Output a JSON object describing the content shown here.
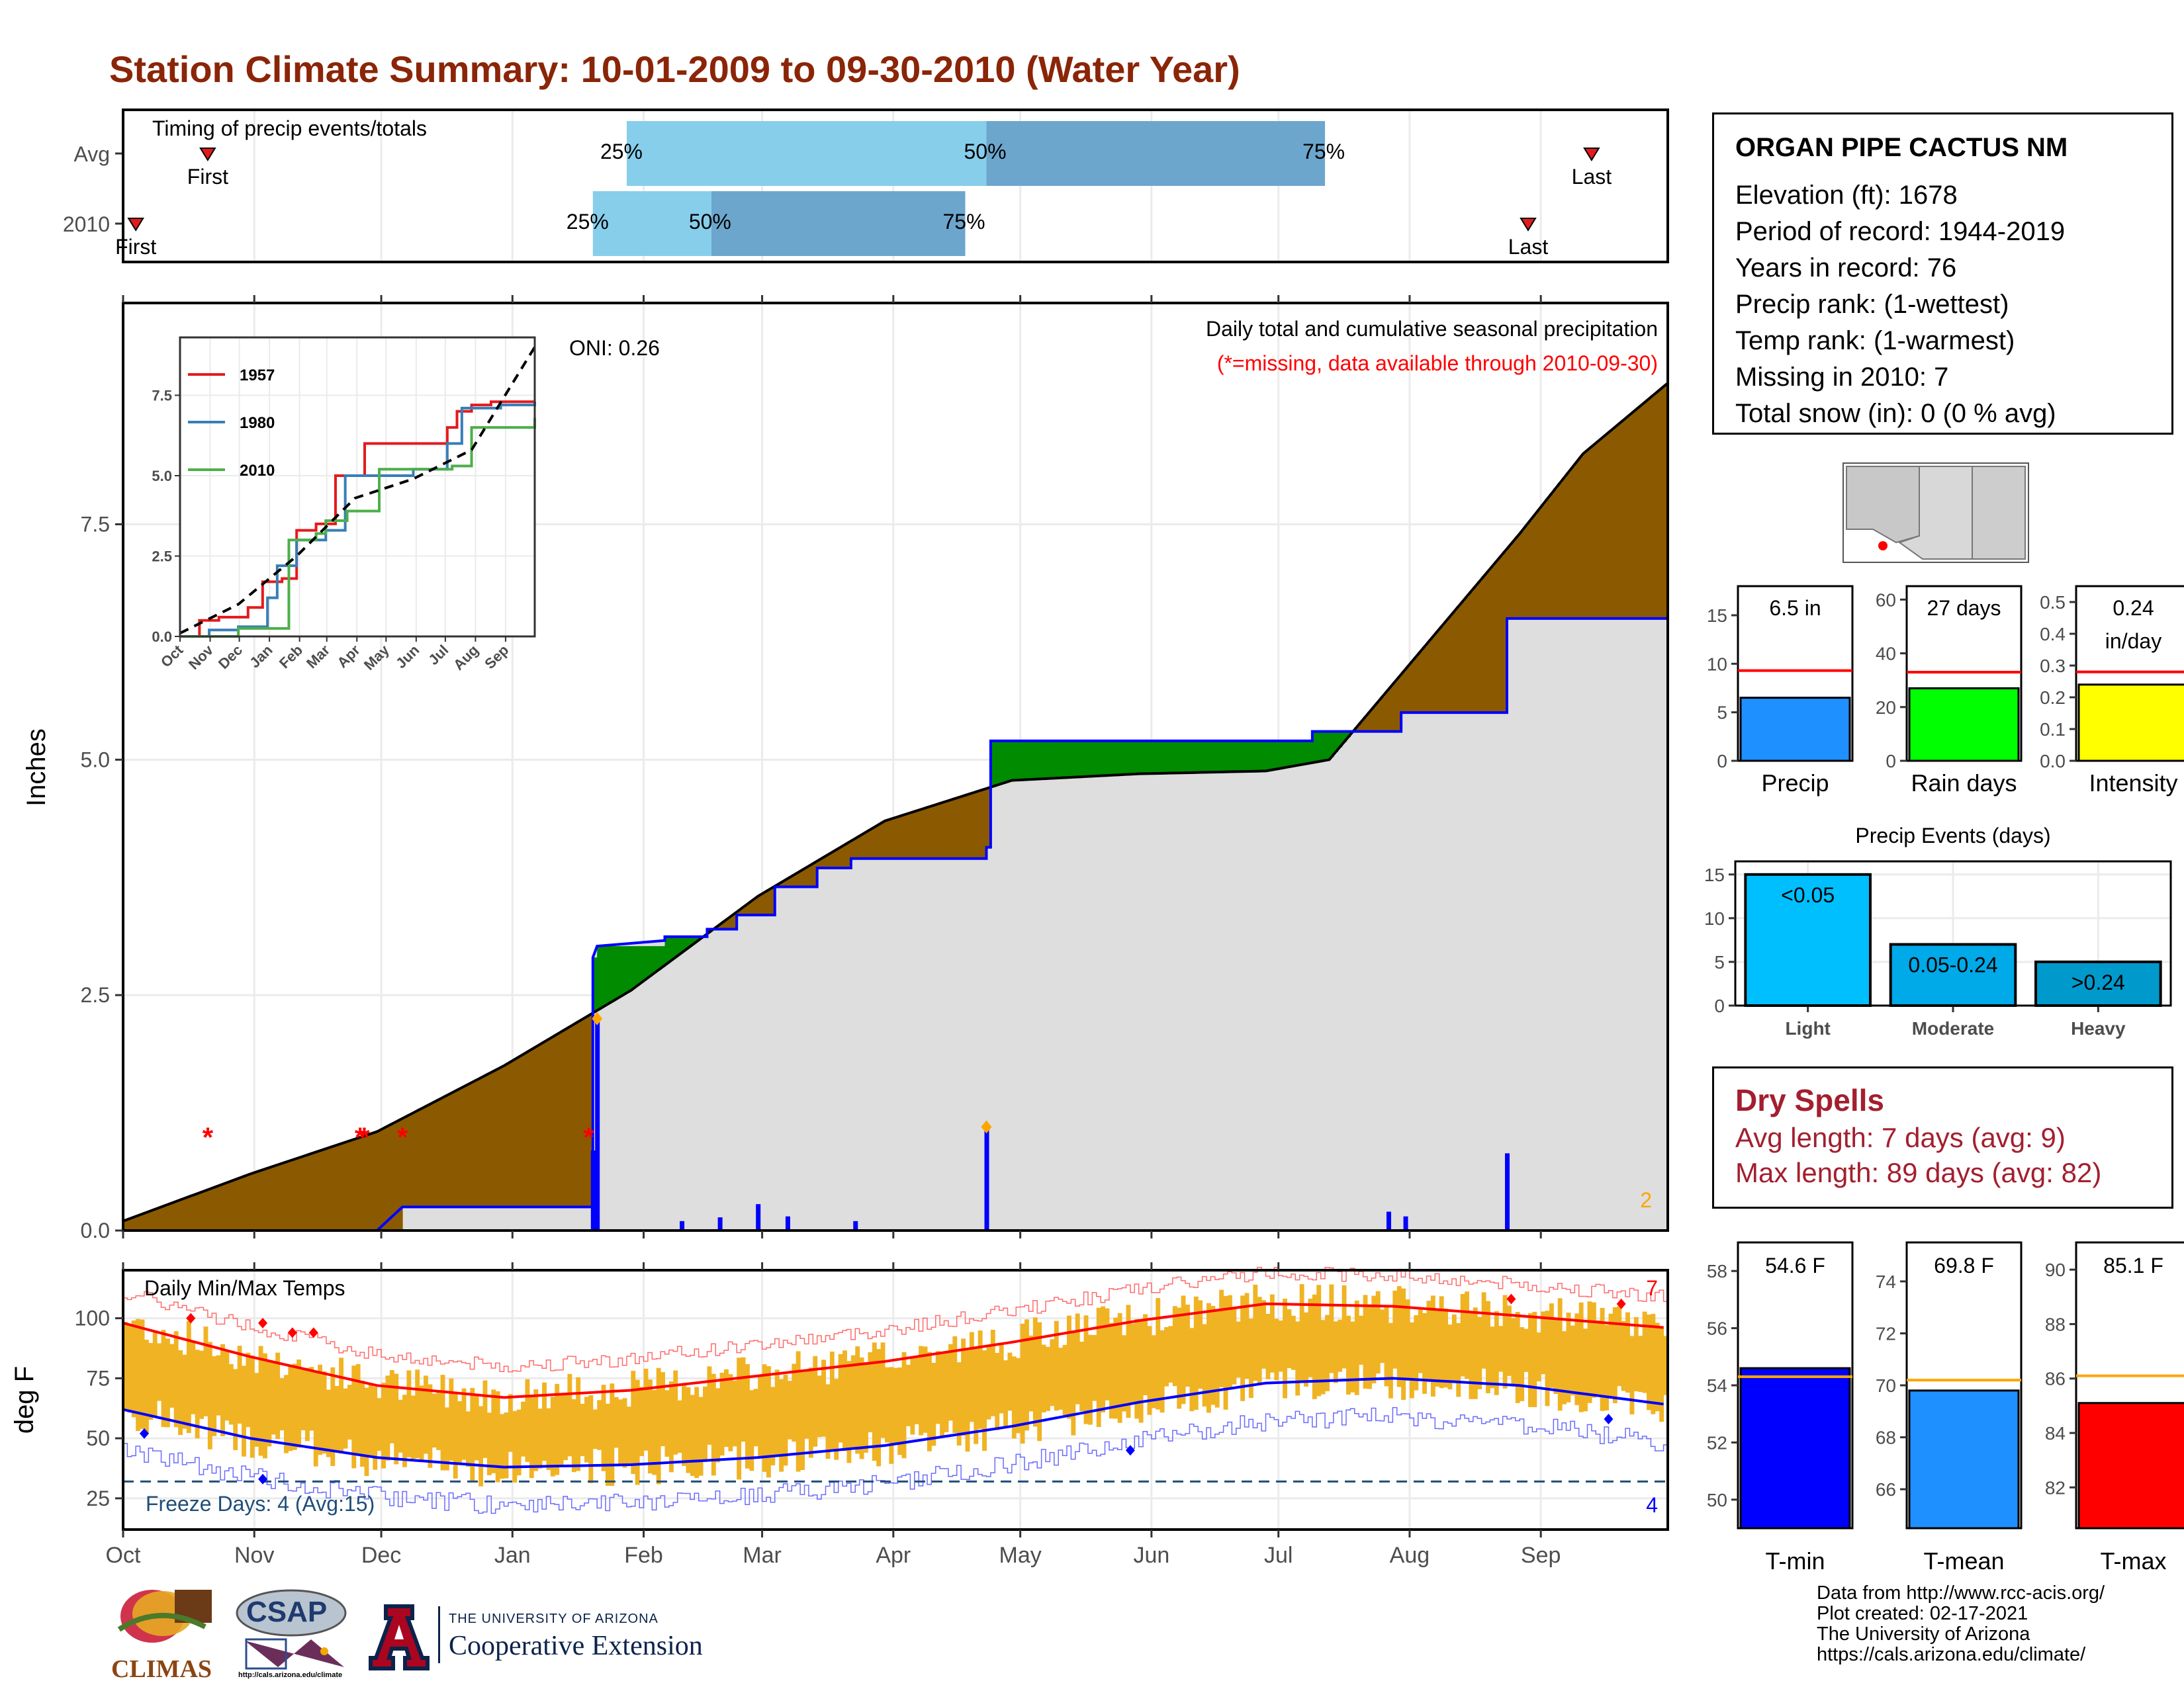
{
  "title": "Station Climate Summary: 10-01-2009 to 09-30-2010 (Water Year)",
  "months": [
    "Oct",
    "Nov",
    "Dec",
    "Jan",
    "Feb",
    "Mar",
    "Apr",
    "May",
    "Jun",
    "Jul",
    "Aug",
    "Sep"
  ],
  "timing": {
    "label": "Timing of precip events/totals",
    "rows": [
      {
        "name": "Avg",
        "first_day": 20,
        "last_day": 347,
        "p25_day": 119,
        "p50_day": 204,
        "p75_day": 284,
        "first_label": "First",
        "last_label": "Last",
        "p25": "25%",
        "p50": "50%",
        "p75": "75%"
      },
      {
        "name": "2010",
        "first_day": 3,
        "last_day": 332,
        "p25_day": 111,
        "p50_day": 139,
        "p75_day": 199,
        "first_label": "First",
        "last_label": "Last",
        "p25": "25%",
        "p50": "50%",
        "p75": "75%"
      }
    ]
  },
  "precip": {
    "ylabel": "Inches",
    "yticks": [
      "0.0",
      "2.5",
      "5.0",
      "7.5"
    ],
    "ylim": [
      0,
      9.85
    ],
    "title": "Daily total and cumulative seasonal precipitation",
    "missing_note": "(*=missing, data available through 2010-09-30)",
    "oni": "ONI: 0.26",
    "corner_count": "2",
    "avg_cum": [
      [
        0,
        0.1
      ],
      [
        30,
        0.6
      ],
      [
        60,
        1.05
      ],
      [
        90,
        1.75
      ],
      [
        120,
        2.55
      ],
      [
        150,
        3.55
      ],
      [
        180,
        4.35
      ],
      [
        210,
        4.78
      ],
      [
        240,
        4.85
      ],
      [
        270,
        4.88
      ],
      [
        285,
        5.0
      ],
      [
        300,
        5.8
      ],
      [
        315,
        6.6
      ],
      [
        330,
        7.4
      ],
      [
        345,
        8.25
      ],
      [
        365,
        9.0
      ]
    ],
    "season_cum": [
      [
        0,
        0
      ],
      [
        60,
        0
      ],
      [
        66,
        0.25
      ],
      [
        111,
        0.25
      ],
      [
        111,
        2.9
      ],
      [
        112,
        3.02
      ],
      [
        128,
        3.08
      ],
      [
        128,
        3.12
      ],
      [
        138,
        3.12
      ],
      [
        138,
        3.2
      ],
      [
        145,
        3.2
      ],
      [
        145,
        3.35
      ],
      [
        154,
        3.35
      ],
      [
        154,
        3.65
      ],
      [
        164,
        3.65
      ],
      [
        164,
        3.85
      ],
      [
        172,
        3.85
      ],
      [
        172,
        3.95
      ],
      [
        204,
        3.95
      ],
      [
        204,
        4.07
      ],
      [
        205,
        4.07
      ],
      [
        205,
        5.2
      ],
      [
        281,
        5.2
      ],
      [
        281,
        5.3
      ],
      [
        302,
        5.3
      ],
      [
        302,
        5.5
      ],
      [
        327,
        5.5
      ],
      [
        327,
        6.5
      ],
      [
        365,
        6.5
      ]
    ],
    "daily": [
      [
        111,
        0.85
      ],
      [
        112,
        2.25
      ],
      [
        132,
        0.1
      ],
      [
        141,
        0.14
      ],
      [
        150,
        0.28
      ],
      [
        157,
        0.15
      ],
      [
        173,
        0.1
      ],
      [
        204,
        1.1
      ],
      [
        299,
        0.2
      ],
      [
        303,
        0.15
      ],
      [
        327,
        0.82
      ]
    ],
    "orange_points": [
      [
        112,
        2.25
      ],
      [
        204,
        1.1
      ]
    ],
    "missing_days": [
      20,
      56,
      57,
      66,
      110
    ],
    "missing_y": 1.0
  },
  "inset": {
    "legend": [
      "1957",
      "1980",
      "2010"
    ],
    "colors": [
      "#E41A1C",
      "#377EB8",
      "#4DAF4A"
    ],
    "yticks": [
      "0.0",
      "2.5",
      "5.0",
      "7.5"
    ],
    "ylim": [
      0,
      9.3
    ],
    "months": [
      "Oct",
      "Nov",
      "Dec",
      "Jan",
      "Feb",
      "Mar",
      "Apr",
      "May",
      "Jun",
      "Jul",
      "Aug",
      "Sep"
    ],
    "series_1957": [
      [
        0,
        0
      ],
      [
        20,
        0.5
      ],
      [
        40,
        0.6
      ],
      [
        70,
        0.9
      ],
      [
        85,
        1.7
      ],
      [
        105,
        1.8
      ],
      [
        120,
        3.3
      ],
      [
        140,
        3.5
      ],
      [
        160,
        5.0
      ],
      [
        190,
        6.0
      ],
      [
        250,
        6.0
      ],
      [
        275,
        6.5
      ],
      [
        285,
        7.0
      ],
      [
        300,
        7.2
      ],
      [
        320,
        7.3
      ],
      [
        365,
        7.3
      ]
    ],
    "series_1980": [
      [
        0,
        0
      ],
      [
        30,
        0.2
      ],
      [
        60,
        0.3
      ],
      [
        90,
        1.2
      ],
      [
        100,
        2.2
      ],
      [
        120,
        3.0
      ],
      [
        150,
        3.3
      ],
      [
        170,
        5.0
      ],
      [
        240,
        5.2
      ],
      [
        275,
        6.0
      ],
      [
        290,
        7.1
      ],
      [
        330,
        7.2
      ],
      [
        365,
        7.3
      ]
    ],
    "series_2010": [
      [
        0,
        0
      ],
      [
        60,
        0.25
      ],
      [
        110,
        0.25
      ],
      [
        112,
        3.0
      ],
      [
        140,
        3.2
      ],
      [
        150,
        3.6
      ],
      [
        172,
        3.9
      ],
      [
        205,
        5.2
      ],
      [
        280,
        5.3
      ],
      [
        300,
        6.5
      ],
      [
        365,
        6.8
      ]
    ],
    "series_avg": [
      [
        0,
        0.1
      ],
      [
        60,
        1.0
      ],
      [
        120,
        2.5
      ],
      [
        180,
        4.3
      ],
      [
        240,
        4.9
      ],
      [
        300,
        5.8
      ],
      [
        365,
        9.0
      ]
    ]
  },
  "station": {
    "name": "ORGAN PIPE CACTUS NM",
    "lines": [
      "Elevation (ft): 1678",
      "Period of record: 1944-2019",
      "Years in record: 76",
      "Precip rank:  (1-wettest)",
      "Temp rank:  (1-warmest)",
      "Missing in 2010: 7",
      "Total snow (in): 0 (0 % avg)"
    ]
  },
  "season_bars": [
    {
      "label": "Precip",
      "value": 6.5,
      "avg": 9.3,
      "value_label": "6.5 in",
      "value_label2": "",
      "ymax": 18,
      "ticks": [
        "0",
        "5",
        "10",
        "15"
      ],
      "tickvals": [
        0,
        5,
        10,
        15
      ],
      "color": "#1E90FF"
    },
    {
      "label": "Rain days",
      "value": 27,
      "avg": 33,
      "value_label": "27 days",
      "value_label2": "",
      "ymax": 65,
      "ticks": [
        "0",
        "20",
        "40",
        "60"
      ],
      "tickvals": [
        0,
        20,
        40,
        60
      ],
      "color": "#00FF00"
    },
    {
      "label": "Intensity",
      "value": 0.24,
      "avg": 0.28,
      "value_label": "0.24",
      "value_label2": "in/day",
      "ymax": 0.55,
      "ticks": [
        "0.0",
        "0.1",
        "0.2",
        "0.3",
        "0.4",
        "0.5"
      ],
      "tickvals": [
        0,
        0.1,
        0.2,
        0.3,
        0.4,
        0.5
      ],
      "color": "#FFFF00"
    }
  ],
  "precip_events": {
    "title": "Precip Events (days)",
    "categories": [
      "Light",
      "Moderate",
      "Heavy"
    ],
    "values": [
      15,
      7,
      5
    ],
    "labels": [
      "<0.05",
      "0.05-0.24",
      ">0.24"
    ],
    "colors": [
      "#00BFFF",
      "#00A9E8",
      "#0099CC"
    ],
    "yticks": [
      "0",
      "5",
      "10",
      "15"
    ],
    "ymax": 16.5
  },
  "dry_spells": {
    "title": "Dry Spells",
    "lines": [
      "Avg length: 7 days (avg: 9)",
      "Max length: 89 days (avg: 82)"
    ]
  },
  "temps": {
    "ylabel": "deg F",
    "title": "Daily Min/Max Temps",
    "yticks": [
      "25",
      "50",
      "75",
      "100"
    ],
    "ylim": [
      12,
      120
    ],
    "freeze_label": "Freeze Days: 4 (Avg:15)",
    "freeze_line": 32,
    "hot_count": "7",
    "cold_count": "4",
    "avg_max": [
      [
        0,
        98
      ],
      [
        30,
        84
      ],
      [
        60,
        72
      ],
      [
        90,
        67
      ],
      [
        120,
        70
      ],
      [
        150,
        76
      ],
      [
        180,
        82
      ],
      [
        210,
        90
      ],
      [
        240,
        99
      ],
      [
        270,
        106
      ],
      [
        300,
        105
      ],
      [
        330,
        101
      ],
      [
        365,
        96
      ]
    ],
    "avg_min": [
      [
        0,
        62
      ],
      [
        30,
        50
      ],
      [
        60,
        42
      ],
      [
        90,
        38
      ],
      [
        120,
        39
      ],
      [
        150,
        42
      ],
      [
        180,
        47
      ],
      [
        210,
        55
      ],
      [
        240,
        65
      ],
      [
        270,
        73
      ],
      [
        300,
        75
      ],
      [
        330,
        72
      ],
      [
        365,
        64
      ]
    ]
  },
  "temp_bars": [
    {
      "label": "T-min",
      "value": 54.6,
      "avg": 54.3,
      "value_label": "54.6 F",
      "ymin": 49,
      "ymax": 59,
      "ticks": [
        "50",
        "52",
        "54",
        "56",
        "58"
      ],
      "tickvals": [
        50,
        52,
        54,
        56,
        58
      ],
      "color": "#0000FF"
    },
    {
      "label": "T-mean",
      "value": 69.8,
      "avg": 70.2,
      "value_label": "69.8 F",
      "ymin": 64.5,
      "ymax": 75.5,
      "ticks": [
        "66",
        "68",
        "70",
        "72",
        "74"
      ],
      "tickvals": [
        66,
        68,
        70,
        72,
        74
      ],
      "color": "#1E90FF"
    },
    {
      "label": "T-max",
      "value": 85.1,
      "avg": 86.1,
      "value_label": "85.1 F",
      "ymin": 80.5,
      "ymax": 91,
      "ticks": [
        "82",
        "84",
        "86",
        "88",
        "90"
      ],
      "tickvals": [
        82,
        84,
        86,
        88,
        90
      ],
      "color": "#FF0000"
    }
  ],
  "credits": [
    "Data from http://www.rcc-acis.org/",
    "Plot created: 02-17-2021",
    "The University of Arizona",
    "https://cals.arizona.edu/climate/"
  ],
  "logos": {
    "climas": "CLIMAS",
    "csap": "CSAP",
    "csap_url": "http://cals.arizona.edu/climate",
    "ua_top": "THE UNIVERSITY OF ARIZONA",
    "ua_bottom": "Cooperative Extension"
  }
}
